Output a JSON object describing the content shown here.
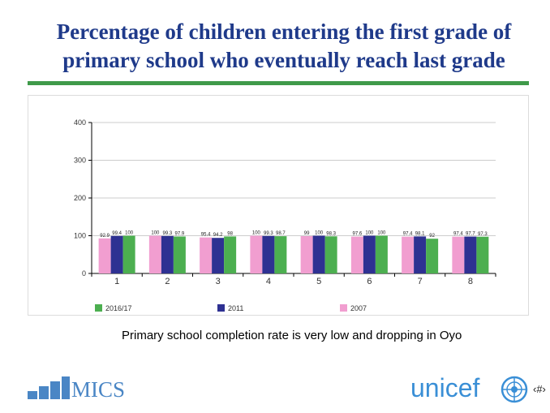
{
  "slide": {
    "title": "Percentage of children entering the first grade of primary school who eventually reach last grade",
    "caption": "Primary school completion rate is very low and dropping in Oyo",
    "slide_number": "‹#›",
    "mics_logo_text": "MICS",
    "unicef_logo_text": "unicef"
  },
  "colors": {
    "title": "#1f3a8a",
    "accent_rule": "#3f9a4a",
    "series_2007": "#f19ed0",
    "series_2011": "#2e3192",
    "series_2016_17": "#4caf50",
    "mics_blue": "#4a86c5",
    "unicef_blue": "#3a8fd6"
  },
  "chart_data": {
    "type": "bar",
    "categories": [
      "1",
      "2",
      "3",
      "4",
      "5",
      "6",
      "7",
      "8"
    ],
    "series": [
      {
        "name": "2007",
        "color": "#f19ed0",
        "values": [
          92.9,
          100,
          95.4,
          100,
          99,
          97.6,
          97.4,
          97.4
        ]
      },
      {
        "name": "2011",
        "color": "#2e3192",
        "values": [
          99.4,
          99.3,
          94.2,
          99.3,
          100,
          100,
          98.1,
          97.7
        ]
      },
      {
        "name": "2016/17",
        "color": "#4caf50",
        "values": [
          100,
          97.9,
          98,
          98.7,
          98.3,
          100,
          92,
          97.3
        ]
      }
    ],
    "legend_order": [
      "2016/17",
      "2011",
      "2007"
    ],
    "legend_position": "bottom",
    "yticks": [
      0,
      100,
      200,
      300,
      400
    ],
    "ylim": [
      0,
      400
    ],
    "grid": true,
    "xlabel": "",
    "ylabel": ""
  }
}
